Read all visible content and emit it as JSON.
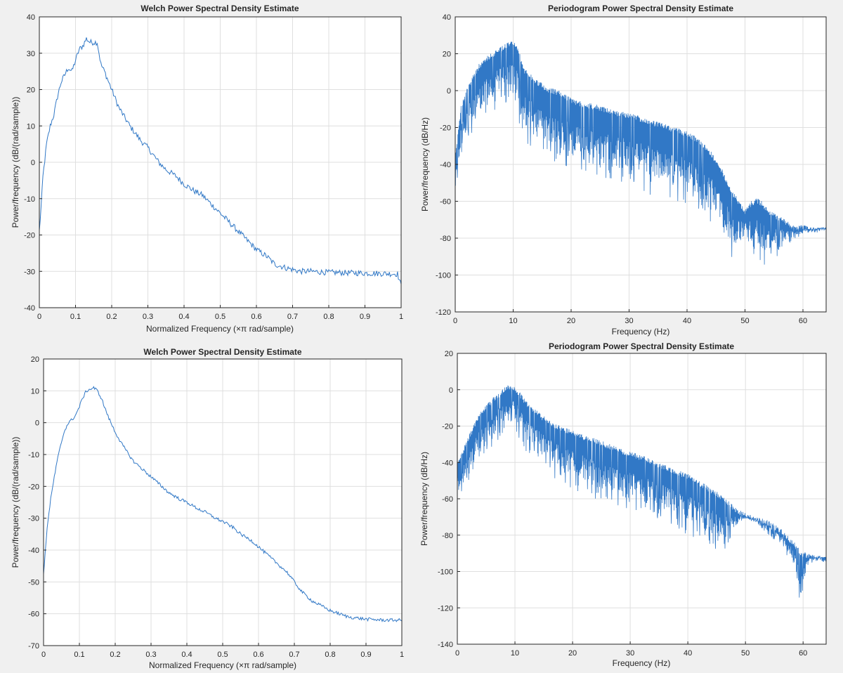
{
  "colors": {
    "line": "#3178c6",
    "light_line": "#5a9ad8",
    "grid": "#dfdfdf",
    "axis": "#262626",
    "plot_bg": "#ffffff",
    "figure_bg": "#f0f0f0"
  },
  "chart_data": [
    {
      "type": "line",
      "title": "Welch Power Spectral Density Estimate",
      "xlabel": "Normalized Frequency  (×π rad/sample)",
      "ylabel": "Power/frequency (dB/(rad/sample))",
      "xlim": [
        0,
        1
      ],
      "ylim": [
        -40,
        40
      ],
      "xticks": [
        0,
        0.1,
        0.2,
        0.3,
        0.4,
        0.5,
        0.6,
        0.7,
        0.8,
        0.9,
        1
      ],
      "xtick_labels": [
        "0",
        "0.1",
        "0.2",
        "0.3",
        "0.4",
        "0.5",
        "0.6",
        "0.7",
        "0.8",
        "0.9",
        "1"
      ],
      "yticks": [
        -40,
        -30,
        -20,
        -10,
        0,
        10,
        20,
        30,
        40
      ],
      "ytick_labels": [
        "-40",
        "-30",
        "-20",
        "-10",
        "0",
        "10",
        "20",
        "30",
        "40"
      ],
      "grid": true,
      "series": [
        {
          "x": [
            0,
            0.005,
            0.01,
            0.02,
            0.03,
            0.04,
            0.05,
            0.06,
            0.07,
            0.08,
            0.09,
            0.1,
            0.11,
            0.12,
            0.13,
            0.14,
            0.15,
            0.16,
            0.17,
            0.18,
            0.2,
            0.22,
            0.25,
            0.28,
            0.3,
            0.33,
            0.35,
            0.38,
            0.4,
            0.43,
            0.45,
            0.48,
            0.5,
            0.53,
            0.55,
            0.58,
            0.6,
            0.63,
            0.65,
            0.68,
            0.7,
            0.72,
            0.75,
            0.8,
            0.85,
            0.9,
            0.95,
            0.99,
            1.0
          ],
          "y": [
            -19,
            -12,
            -4,
            5,
            10,
            13,
            18,
            22,
            24,
            26,
            25,
            28,
            31,
            32,
            34,
            33,
            33,
            33,
            27,
            25,
            20,
            15,
            10,
            6,
            4,
            0,
            -2,
            -4,
            -6,
            -8,
            -9,
            -12,
            -14,
            -17,
            -19,
            -22,
            -24,
            -26,
            -28,
            -29,
            -29.5,
            -30,
            -30,
            -30.3,
            -30.4,
            -30.5,
            -30.6,
            -30.7,
            -34
          ],
          "noise": 0.8
        }
      ]
    },
    {
      "type": "line",
      "title": "Periodogram Power Spectral Density Estimate",
      "xlabel": "Frequency (Hz)",
      "ylabel": "Power/frequency (dB/Hz)",
      "xlim": [
        0,
        64
      ],
      "ylim": [
        -120,
        40
      ],
      "xticks": [
        0,
        10,
        20,
        30,
        40,
        50,
        60
      ],
      "xtick_labels": [
        "0",
        "10",
        "20",
        "30",
        "40",
        "50",
        "60"
      ],
      "yticks": [
        -120,
        -100,
        -80,
        -60,
        -40,
        -20,
        0,
        20,
        40
      ],
      "ytick_labels": [
        "-120",
        "-100",
        "-80",
        "-60",
        "-40",
        "-20",
        "0",
        "20",
        "40"
      ],
      "grid": true,
      "series": [
        {
          "x": [
            0,
            1,
            2,
            3,
            4,
            5,
            6,
            7,
            8,
            9,
            10,
            11,
            12,
            14,
            16,
            18,
            20,
            22,
            25,
            28,
            30,
            32,
            35,
            38,
            40,
            42,
            44,
            46,
            48,
            50,
            51,
            52,
            53,
            54,
            55,
            56,
            58,
            60,
            62,
            64
          ],
          "upper": [
            -35,
            -8,
            2,
            8,
            14,
            18,
            20,
            22,
            24,
            26,
            28,
            22,
            12,
            6,
            2,
            0,
            -4,
            -6,
            -8,
            -11,
            -12,
            -14,
            -17,
            -20,
            -22,
            -26,
            -32,
            -42,
            -55,
            -64,
            -60,
            -58,
            -60,
            -64,
            -66,
            -68,
            -72,
            -73,
            -74,
            -74
          ],
          "lower": [
            -60,
            -35,
            -28,
            -25,
            -20,
            -15,
            -12,
            -10,
            -8,
            -6,
            -5,
            -20,
            -30,
            -34,
            -38,
            -40,
            -42,
            -44,
            -48,
            -50,
            -52,
            -55,
            -58,
            -60,
            -62,
            -68,
            -74,
            -84,
            -95,
            -85,
            -90,
            -92,
            -95,
            -96,
            -92,
            -88,
            -82,
            -79,
            -76,
            -75
          ]
        }
      ]
    },
    {
      "type": "line",
      "title": "Welch Power Spectral Density Estimate",
      "xlabel": "Normalized Frequency  (×π rad/sample)",
      "ylabel": "Power/frequency (dB/(rad/sample))",
      "xlim": [
        0,
        1
      ],
      "ylim": [
        -70,
        20
      ],
      "xticks": [
        0,
        0.1,
        0.2,
        0.3,
        0.4,
        0.5,
        0.6,
        0.7,
        0.8,
        0.9,
        1
      ],
      "xtick_labels": [
        "0",
        "0.1",
        "0.2",
        "0.3",
        "0.4",
        "0.5",
        "0.6",
        "0.7",
        "0.8",
        "0.9",
        "1"
      ],
      "yticks": [
        -70,
        -60,
        -50,
        -40,
        -30,
        -20,
        -10,
        0,
        10,
        20
      ],
      "ytick_labels": [
        "-70",
        "-60",
        "-50",
        "-40",
        "-30",
        "-20",
        "-10",
        "0",
        "10",
        "20"
      ],
      "grid": true,
      "series": [
        {
          "x": [
            0,
            0.005,
            0.01,
            0.02,
            0.03,
            0.04,
            0.05,
            0.06,
            0.07,
            0.08,
            0.09,
            0.1,
            0.11,
            0.12,
            0.13,
            0.14,
            0.15,
            0.16,
            0.17,
            0.18,
            0.2,
            0.22,
            0.25,
            0.28,
            0.3,
            0.33,
            0.35,
            0.38,
            0.4,
            0.43,
            0.45,
            0.48,
            0.5,
            0.53,
            0.55,
            0.58,
            0.6,
            0.63,
            0.65,
            0.68,
            0.7,
            0.72,
            0.75,
            0.8,
            0.85,
            0.9,
            0.95,
            1.0
          ],
          "y": [
            -48,
            -40,
            -33,
            -24,
            -17,
            -11,
            -6,
            -2,
            0,
            1,
            2.5,
            5,
            8,
            10,
            10.5,
            11,
            10,
            8,
            5,
            2,
            -3,
            -7,
            -12,
            -15,
            -17,
            -20,
            -22,
            -24,
            -25,
            -27,
            -28,
            -30,
            -31,
            -33,
            -35,
            -37,
            -39,
            -42,
            -44,
            -47,
            -50,
            -53,
            -56,
            -59,
            -61,
            -61.7,
            -62,
            -62
          ],
          "noise": 0.5
        }
      ]
    },
    {
      "type": "line",
      "title": "Periodogram Power Spectral Density Estimate",
      "xlabel": "Frequency (Hz)",
      "ylabel": "Power/frequency (dB/Hz)",
      "xlim": [
        0,
        64
      ],
      "ylim": [
        -140,
        20
      ],
      "xticks": [
        0,
        10,
        20,
        30,
        40,
        50,
        60
      ],
      "xtick_labels": [
        "0",
        "10",
        "20",
        "30",
        "40",
        "50",
        "60"
      ],
      "yticks": [
        -140,
        -120,
        -100,
        -80,
        -60,
        -40,
        -20,
        0,
        20
      ],
      "ytick_labels": [
        "-140",
        "-120",
        "-100",
        "-80",
        "-60",
        "-40",
        "-20",
        "0",
        "20"
      ],
      "grid": true,
      "series": [
        {
          "x": [
            0,
            1,
            2,
            3,
            4,
            5,
            6,
            7,
            8,
            9,
            10,
            11,
            12,
            14,
            16,
            18,
            20,
            22,
            25,
            28,
            30,
            32,
            35,
            38,
            40,
            42,
            44,
            46,
            48,
            49,
            50,
            52,
            54,
            56,
            58,
            59,
            59.5,
            60,
            61,
            62,
            64
          ],
          "upper": [
            -40,
            -32,
            -25,
            -18,
            -12,
            -8,
            -5,
            -2,
            1,
            3,
            2,
            -2,
            -6,
            -12,
            -17,
            -20,
            -22,
            -25,
            -28,
            -32,
            -34,
            -36,
            -40,
            -44,
            -46,
            -50,
            -54,
            -58,
            -64,
            -66,
            -68,
            -70,
            -72,
            -76,
            -82,
            -86,
            -88,
            -89,
            -90,
            -91,
            -92
          ],
          "lower": [
            -65,
            -55,
            -50,
            -45,
            -40,
            -36,
            -32,
            -28,
            -24,
            -20,
            -22,
            -30,
            -35,
            -40,
            -46,
            -52,
            -55,
            -58,
            -61,
            -64,
            -66,
            -70,
            -72,
            -76,
            -80,
            -82,
            -86,
            -92,
            -80,
            -75,
            -72,
            -74,
            -80,
            -86,
            -95,
            -110,
            -125,
            -110,
            -98,
            -94,
            -92
          ]
        }
      ]
    }
  ]
}
